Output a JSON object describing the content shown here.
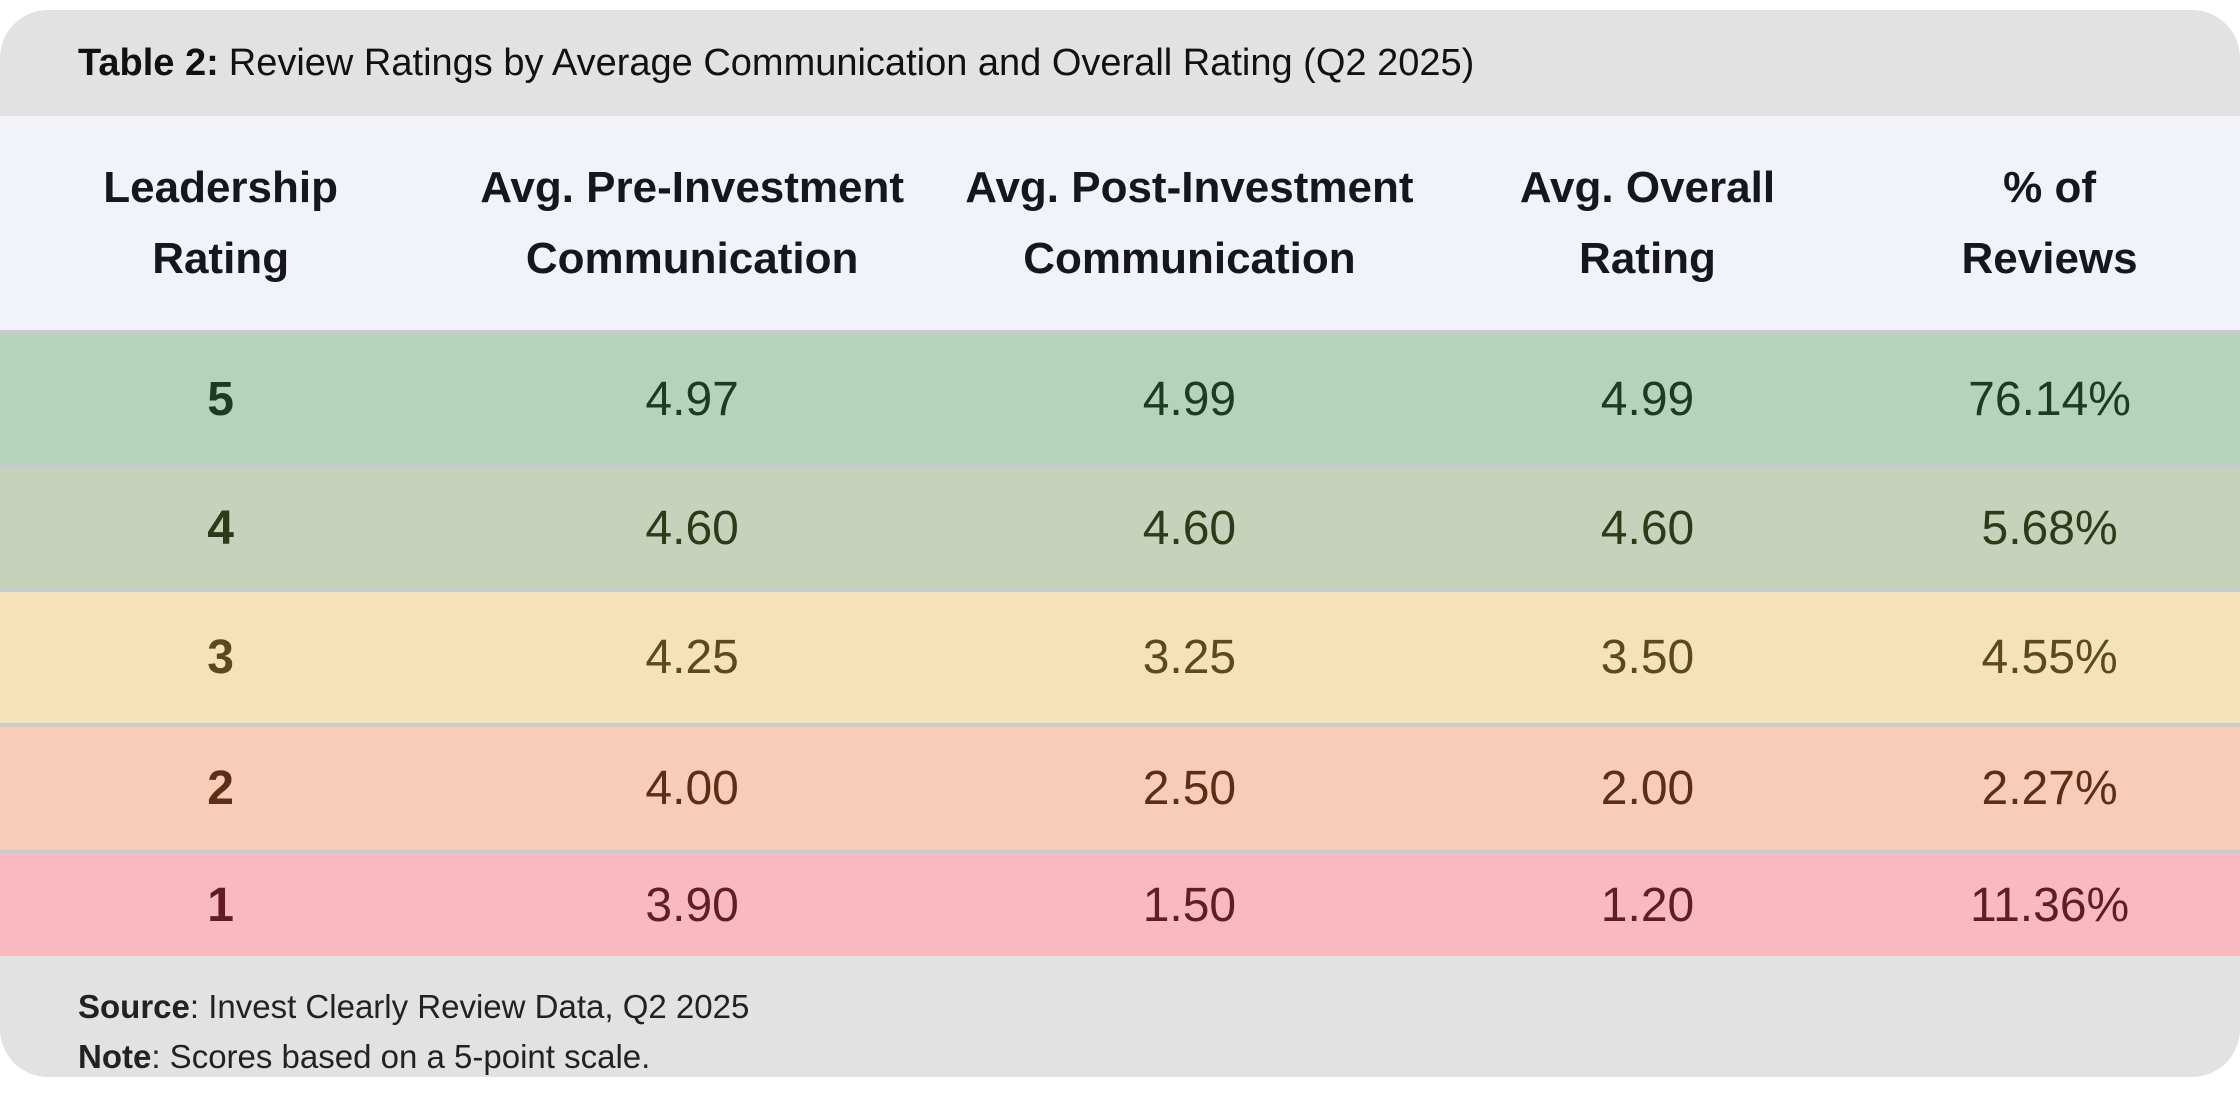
{
  "title": {
    "label": "Table 2:",
    "text": "Review Ratings by Average Communication and Overall Rating (Q2 2025)"
  },
  "table": {
    "columns": [
      "Leadership\nRating",
      "Avg. Pre-Investment\nCommunication",
      "Avg. Post-Investment\nCommunication",
      "Avg. Overall\nRating",
      "% of\nReviews"
    ],
    "rows": [
      {
        "bg": "#b5d3ba",
        "fg": "#1d3b21",
        "cells": [
          "5",
          "4.97",
          "4.99",
          "4.99",
          "76.14%"
        ]
      },
      {
        "bg": "#c6d2ba",
        "fg": "#2c3c19",
        "cells": [
          "4",
          "4.60",
          "4.60",
          "4.60",
          "5.68%"
        ]
      },
      {
        "bg": "#f5e2b8",
        "fg": "#5c491c",
        "cells": [
          "3",
          "4.25",
          "3.25",
          "3.50",
          "4.55%"
        ]
      },
      {
        "bg": "#f7cdb9",
        "fg": "#5e2d18",
        "cells": [
          "2",
          "4.00",
          "2.50",
          "2.00",
          "2.27%"
        ]
      },
      {
        "bg": "#f8b9c0",
        "fg": "#621c25",
        "cells": [
          "1",
          "3.90",
          "1.50",
          "1.20",
          "11.36%"
        ]
      }
    ]
  },
  "footer": {
    "source_label": "Source",
    "source_text": ": Invest Clearly Review Data, Q2 2025",
    "note_label": "Note",
    "note_text": ": Scores based on a 5-point scale."
  },
  "colors": {
    "title_bar_bg": "#e2e2e2",
    "header_bg": "#f2f3f9",
    "divider": "#c9cccb",
    "row_green_dark": "#b5d3ba",
    "row_green_olive": "#c6d2ba",
    "row_yellow": "#f5e2b8",
    "row_peach": "#f7cdb9",
    "row_pink": "#f8b9c0"
  },
  "chart_data": {
    "type": "table",
    "title": "Table 2: Review Ratings by Average Communication and Overall Rating (Q2 2025)",
    "columns": [
      "Leadership Rating",
      "Avg. Pre-Investment Communication",
      "Avg. Post-Investment Communication",
      "Avg. Overall Rating",
      "% of Reviews"
    ],
    "rows": [
      [
        5,
        4.97,
        4.99,
        4.99,
        "76.14%"
      ],
      [
        4,
        4.6,
        4.6,
        4.6,
        "5.68%"
      ],
      [
        3,
        4.25,
        3.25,
        3.5,
        "4.55%"
      ],
      [
        2,
        4.0,
        2.5,
        2.0,
        "2.27%"
      ],
      [
        1,
        3.9,
        1.5,
        1.2,
        "11.36%"
      ]
    ],
    "source": "Invest Clearly Review Data, Q2 2025",
    "note": "Scores based on a 5-point scale.",
    "row_color_semantics": [
      "high-green",
      "green",
      "yellow",
      "orange",
      "red"
    ]
  }
}
